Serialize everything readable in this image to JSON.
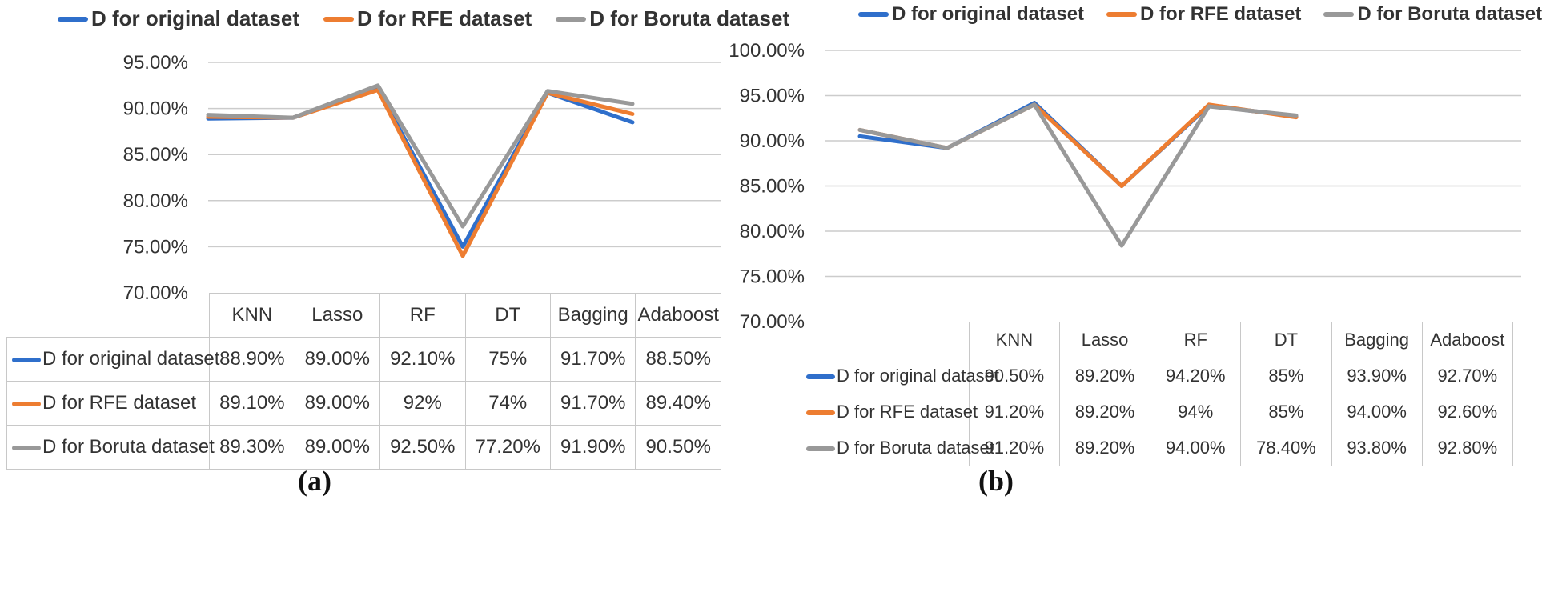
{
  "colors": {
    "original": "#2F6FCB",
    "rfe": "#ED7D31",
    "boruta": "#999999"
  },
  "chart_data": [
    {
      "type": "line",
      "panel_label": "(a)",
      "categories": [
        "KNN",
        "Lasso",
        "RF",
        "DT",
        "Bagging",
        "Adaboost"
      ],
      "ylim": [
        70,
        95
      ],
      "yticks": [
        "70.00%",
        "75.00%",
        "80.00%",
        "85.00%",
        "90.00%",
        "95.00%"
      ],
      "ytick_values": [
        70,
        75,
        80,
        85,
        90,
        95
      ],
      "legend": [
        "D for original dataset",
        "D for RFE dataset",
        "D for Boruta dataset"
      ],
      "series": [
        {
          "name": "D for original dataset",
          "color": "#2F6FCB",
          "values": [
            88.9,
            89.0,
            92.1,
            75.0,
            91.7,
            88.5
          ],
          "labels": [
            "88.90%",
            "89.00%",
            "92.10%",
            "75%",
            "91.70%",
            "88.50%"
          ]
        },
        {
          "name": "D for RFE dataset",
          "color": "#ED7D31",
          "values": [
            89.1,
            89.0,
            92.0,
            74.0,
            91.7,
            89.4
          ],
          "labels": [
            "89.10%",
            "89.00%",
            "92%",
            "74%",
            "91.70%",
            "89.40%"
          ]
        },
        {
          "name": "D for Boruta dataset",
          "color": "#999999",
          "values": [
            89.3,
            89.0,
            92.5,
            77.2,
            91.9,
            90.5
          ],
          "labels": [
            "89.30%",
            "89.00%",
            "92.50%",
            "77.20%",
            "91.90%",
            "90.50%"
          ]
        }
      ]
    },
    {
      "type": "line",
      "panel_label": "(b)",
      "categories": [
        "KNN",
        "Lasso",
        "RF",
        "DT",
        "Bagging",
        "Adaboost"
      ],
      "ylim": [
        70,
        100
      ],
      "yticks": [
        "70.00%",
        "75.00%",
        "80.00%",
        "85.00%",
        "90.00%",
        "95.00%",
        "100.00%"
      ],
      "ytick_values": [
        70,
        75,
        80,
        85,
        90,
        95,
        100
      ],
      "legend": [
        "D for original dataset",
        "D for RFE dataset",
        "D for Boruta dataset"
      ],
      "series": [
        {
          "name": "D for original dataset",
          "color": "#2F6FCB",
          "values": [
            90.5,
            89.2,
            94.2,
            85.0,
            93.9,
            92.7
          ],
          "labels": [
            "90.50%",
            "89.20%",
            "94.20%",
            "85%",
            "93.90%",
            "92.70%"
          ]
        },
        {
          "name": "D for RFE dataset",
          "color": "#ED7D31",
          "values": [
            91.2,
            89.2,
            94.0,
            85.0,
            94.0,
            92.6
          ],
          "labels": [
            "91.20%",
            "89.20%",
            "94%",
            "85%",
            "94.00%",
            "92.60%"
          ]
        },
        {
          "name": "D for Boruta dataset",
          "color": "#999999",
          "values": [
            91.2,
            89.2,
            94.0,
            78.4,
            93.8,
            92.8
          ],
          "labels": [
            "91.20%",
            "89.20%",
            "94.00%",
            "78.40%",
            "93.80%",
            "92.80%"
          ]
        }
      ]
    }
  ]
}
